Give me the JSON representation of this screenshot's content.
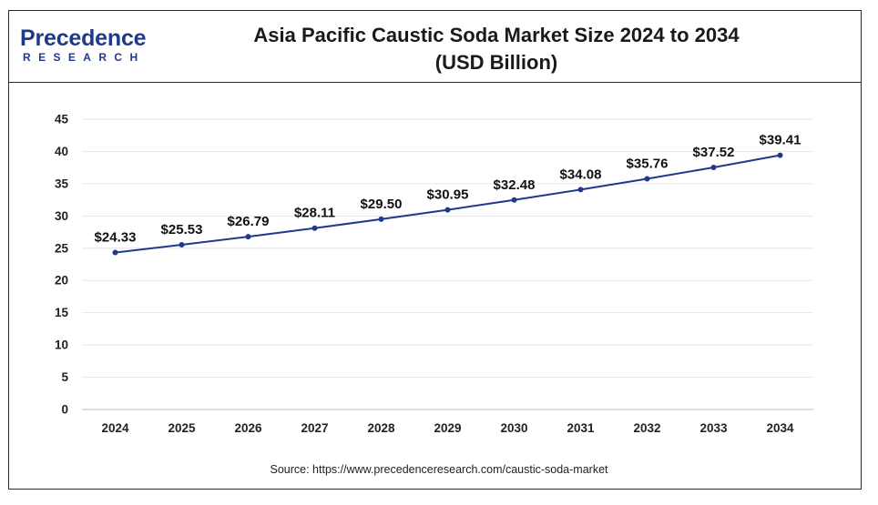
{
  "header": {
    "logo_main": "Precedence",
    "logo_sub": "RESEARCH",
    "title_line1": "Asia Pacific Caustic Soda Market Size 2024 to 2034",
    "title_line2": "(USD Billion)"
  },
  "footer": {
    "source": "Source: https://www.precedenceresearch.com/caustic-soda-market"
  },
  "colors": {
    "line": "#1f3a8a",
    "grid": "#e6e6e6",
    "brand": "#1f3a8a"
  },
  "chart_data": {
    "type": "line",
    "title": "Asia Pacific Caustic Soda Market Size 2024 to 2034 (USD Billion)",
    "xlabel": "",
    "ylabel": "",
    "categories": [
      "2024",
      "2025",
      "2026",
      "2027",
      "2028",
      "2029",
      "2030",
      "2031",
      "2032",
      "2033",
      "2034"
    ],
    "values": [
      24.33,
      25.53,
      26.79,
      28.11,
      29.5,
      30.95,
      32.48,
      34.08,
      35.76,
      37.52,
      39.41
    ],
    "data_labels": [
      "$24.33",
      "$25.53",
      "$26.79",
      "$28.11",
      "$29.50",
      "$30.95",
      "$32.48",
      "$34.08",
      "$35.76",
      "$37.52",
      "$39.41"
    ],
    "yticks": [
      "0",
      "5",
      "10",
      "15",
      "20",
      "25",
      "30",
      "35",
      "40",
      "45"
    ],
    "ylim": [
      0,
      45
    ],
    "grid": true,
    "legend": "none"
  }
}
